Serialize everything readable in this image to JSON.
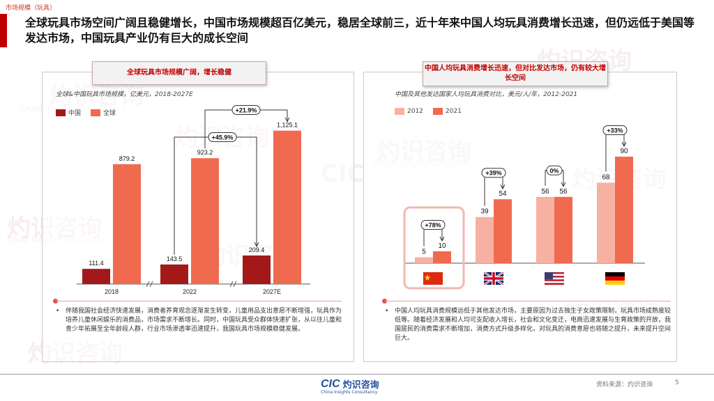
{
  "header": {
    "section_tag": "市场规模（玩具）",
    "headline": "全球玩具市场空间广阔且稳健增长，中国市场规模超百亿美元，稳居全球前三，近十年来中国人均玩具消费增长迅速，但仍远低于美国等发达市场，中国玩具产业仍有巨大的成长空间"
  },
  "left_panel": {
    "ribbon": "全球玩具市场规模广阔，增长稳健",
    "subtitle": "全球&中国玩具市场规模，亿美元，2018-2027E",
    "legend": [
      "中国",
      "全球"
    ],
    "notes": "伴随我国社会经济快速发展，消费者养育观念逐渐发生转变，儿童用品支出意愿不断增强，玩具作为培养儿童休闲娱乐的消费品，市场需求不断增长。同时，中国玩具受众群体快速扩张，从以往儿童和青少年拓展至全年龄段人群，行业市场渗透率迅速提升，我国玩具市场规模稳健发展。"
  },
  "right_panel": {
    "ribbon": "中国人均玩具消费增长迅速，但对比发达市场，仍有较大增长空间",
    "subtitle": "中国及其他发达国家人均玩具消费对比，美元/人/年，2012-2021",
    "legend": [
      "2012",
      "2021"
    ],
    "notes": "中国人均玩具消费规模远低于其他发达市场，主要原因为过去独生子女政策限制，玩具市场成熟度较低等。随着经济发展和人均可支配收入增长，社会和文化变迁，电商迅速发展与生育政策的开放，我国居民的消费需求不断增加，消费方式升级多样化，对玩具的消费意愿也将随之提升，未来提升空间巨大。"
  },
  "chart_data": [
    {
      "type": "bar",
      "title": "全球&中国玩具市场规模，亿美元，2018-2027E",
      "categories": [
        "2018",
        "2022",
        "2027E"
      ],
      "series": [
        {
          "name": "中国",
          "values": [
            111.4,
            143.5,
            209.4
          ],
          "color": "#a31919"
        },
        {
          "name": "全球",
          "values": [
            879.2,
            923.2,
            1125.1
          ],
          "color": "#f06a50"
        }
      ],
      "value_labels": {
        "中国": [
          "111.4",
          "143.5",
          "209.4"
        ],
        "全球": [
          "879.2",
          "923.2",
          "1,125.1"
        ]
      },
      "annotations": [
        {
          "text": "+21.9%",
          "from": "2022",
          "to": "2027E",
          "series": "全球"
        },
        {
          "text": "+45.9%",
          "from": "2022",
          "to": "2027E",
          "series": "中国"
        }
      ],
      "ylim": [
        0,
        1200
      ],
      "grid": false,
      "legend_position": "top-left"
    },
    {
      "type": "bar",
      "title": "中国及其他发达国家人均玩具消费对比，美元/人/年，2012-2021",
      "categories": [
        "中国",
        "英国",
        "美国",
        "德国"
      ],
      "series": [
        {
          "name": "2012",
          "values": [
            5,
            39,
            56,
            68
          ],
          "color": "#f6b1a3"
        },
        {
          "name": "2021",
          "values": [
            10,
            54,
            56,
            90
          ],
          "color": "#f06a50"
        }
      ],
      "growth_labels": [
        "+78%",
        "+39%",
        "0%",
        "+33%"
      ],
      "ylim": [
        0,
        100
      ],
      "grid": false,
      "legend_position": "top-left"
    }
  ],
  "footer": {
    "logo_mark": "CIC",
    "logo_name": "灼识咨询",
    "logo_sub": "China Insights Consultancy",
    "source": "资料来源：灼识咨询",
    "page": "5"
  },
  "watermark": {
    "mark": "CIC",
    "name": "灼识咨询",
    "sub": "China Insights Consultancy"
  },
  "colors": {
    "accent": "#c00000",
    "china": "#a31919",
    "global": "#f06a50",
    "y2012": "#f6b1a3",
    "y2021": "#f06a50"
  }
}
